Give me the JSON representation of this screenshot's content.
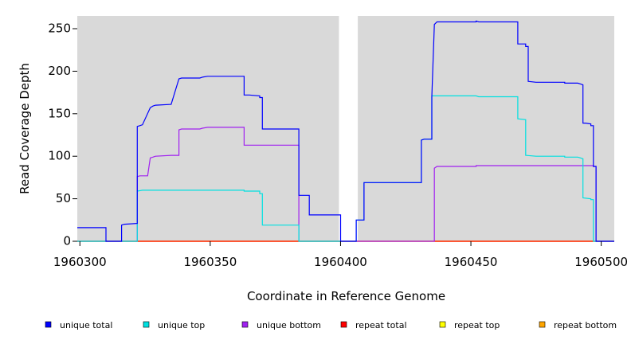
{
  "chart_data": {
    "type": "line",
    "title": "",
    "xlabel": "Coordinate in Reference Genome",
    "ylabel": "Read Coverage Depth",
    "xlim": [
      1960299,
      1960505
    ],
    "ylim": [
      0,
      265
    ],
    "xticks": [
      1960300,
      1960350,
      1960400,
      1960450,
      1960500
    ],
    "yticks": [
      0,
      50,
      100,
      150,
      200,
      250
    ],
    "grid": false,
    "background_color": "#d9d9d9",
    "gap": [
      1960400,
      1960406
    ],
    "legend_position": "bottom",
    "series": [
      {
        "name": "unique total",
        "color": "#0000ff",
        "points": [
          [
            1960299,
            16
          ],
          [
            1960310,
            16
          ],
          [
            1960310,
            0
          ],
          [
            1960316,
            0
          ],
          [
            1960316,
            19
          ],
          [
            1960317,
            20
          ],
          [
            1960322,
            21
          ],
          [
            1960322,
            135
          ],
          [
            1960323,
            136
          ],
          [
            1960324,
            137
          ],
          [
            1960327,
            157
          ],
          [
            1960328,
            159
          ],
          [
            1960329,
            160
          ],
          [
            1960335,
            161
          ],
          [
            1960338,
            191
          ],
          [
            1960339,
            192
          ],
          [
            1960346,
            192
          ],
          [
            1960347,
            193
          ],
          [
            1960349,
            194
          ],
          [
            1960363,
            194
          ],
          [
            1960363,
            172
          ],
          [
            1960365,
            172
          ],
          [
            1960369,
            171
          ],
          [
            1960369,
            169
          ],
          [
            1960370,
            169
          ],
          [
            1960370,
            132
          ],
          [
            1960384,
            132
          ],
          [
            1960384,
            54
          ],
          [
            1960388,
            54
          ],
          [
            1960388,
            31
          ],
          [
            1960400,
            31
          ],
          [
            1960400,
            0
          ],
          [
            1960406,
            0
          ],
          [
            1960406,
            25
          ],
          [
            1960409,
            25
          ],
          [
            1960409,
            69
          ],
          [
            1960431,
            69
          ],
          [
            1960431,
            119
          ],
          [
            1960432,
            120
          ],
          [
            1960435,
            120
          ],
          [
            1960435,
            170
          ],
          [
            1960436,
            255
          ],
          [
            1960437,
            258
          ],
          [
            1960452,
            258
          ],
          [
            1960452,
            259
          ],
          [
            1960453,
            258
          ],
          [
            1960468,
            258
          ],
          [
            1960468,
            232
          ],
          [
            1960471,
            232
          ],
          [
            1960471,
            229
          ],
          [
            1960472,
            229
          ],
          [
            1960472,
            188
          ],
          [
            1960475,
            187
          ],
          [
            1960486,
            187
          ],
          [
            1960486,
            186
          ],
          [
            1960491,
            186
          ],
          [
            1960492,
            185
          ],
          [
            1960493,
            184
          ],
          [
            1960493,
            139
          ],
          [
            1960494,
            139
          ],
          [
            1960496,
            138
          ],
          [
            1960496,
            136
          ],
          [
            1960497,
            136
          ],
          [
            1960497,
            88
          ],
          [
            1960498,
            88
          ],
          [
            1960498,
            0
          ],
          [
            1960505,
            0
          ]
        ]
      },
      {
        "name": "unique top",
        "color": "#00e0e0",
        "points": [
          [
            1960299,
            0
          ],
          [
            1960322,
            0
          ],
          [
            1960322,
            59
          ],
          [
            1960324,
            60
          ],
          [
            1960363,
            60
          ],
          [
            1960363,
            59
          ],
          [
            1960369,
            59
          ],
          [
            1960369,
            56
          ],
          [
            1960370,
            56
          ],
          [
            1960370,
            19
          ],
          [
            1960384,
            19
          ],
          [
            1960384,
            0
          ],
          [
            1960400,
            0
          ],
          [
            1960406,
            0
          ],
          [
            1960406,
            25
          ],
          [
            1960409,
            25
          ],
          [
            1960409,
            69
          ],
          [
            1960431,
            69
          ],
          [
            1960431,
            119
          ],
          [
            1960432,
            120
          ],
          [
            1960435,
            120
          ],
          [
            1960435,
            171
          ],
          [
            1960452,
            171
          ],
          [
            1960453,
            170
          ],
          [
            1960468,
            170
          ],
          [
            1960468,
            144
          ],
          [
            1960471,
            143
          ],
          [
            1960471,
            101
          ],
          [
            1960475,
            100
          ],
          [
            1960486,
            100
          ],
          [
            1960486,
            99
          ],
          [
            1960491,
            99
          ],
          [
            1960492,
            98
          ],
          [
            1960493,
            97
          ],
          [
            1960493,
            51
          ],
          [
            1960496,
            50
          ],
          [
            1960496,
            49
          ],
          [
            1960497,
            49
          ],
          [
            1960497,
            0
          ],
          [
            1960505,
            0
          ]
        ]
      },
      {
        "name": "unique bottom",
        "color": "#a020f0",
        "points": [
          [
            1960299,
            0
          ],
          [
            1960322,
            0
          ],
          [
            1960322,
            76
          ],
          [
            1960323,
            77
          ],
          [
            1960326,
            77
          ],
          [
            1960327,
            98
          ],
          [
            1960328,
            99
          ],
          [
            1960329,
            100
          ],
          [
            1960335,
            101
          ],
          [
            1960338,
            101
          ],
          [
            1960338,
            131
          ],
          [
            1960339,
            132
          ],
          [
            1960346,
            132
          ],
          [
            1960347,
            133
          ],
          [
            1960349,
            134
          ],
          [
            1960363,
            134
          ],
          [
            1960363,
            113
          ],
          [
            1960384,
            113
          ],
          [
            1960384,
            0
          ],
          [
            1960400,
            0
          ],
          [
            1960436,
            0
          ],
          [
            1960436,
            86
          ],
          [
            1960437,
            88
          ],
          [
            1960452,
            88
          ],
          [
            1960452,
            89
          ],
          [
            1960497,
            89
          ],
          [
            1960497,
            88
          ],
          [
            1960498,
            88
          ],
          [
            1960498,
            0
          ],
          [
            1960505,
            0
          ]
        ]
      },
      {
        "name": "repeat total",
        "color": "#ff0000",
        "points": [
          [
            1960299,
            0
          ],
          [
            1960505,
            0
          ]
        ]
      },
      {
        "name": "repeat top",
        "color": "#ffff00",
        "points": [
          [
            1960299,
            0
          ],
          [
            1960505,
            0
          ]
        ]
      },
      {
        "name": "repeat bottom",
        "color": "#ffa500",
        "points": [
          [
            1960299,
            0
          ],
          [
            1960505,
            0
          ]
        ]
      }
    ]
  }
}
